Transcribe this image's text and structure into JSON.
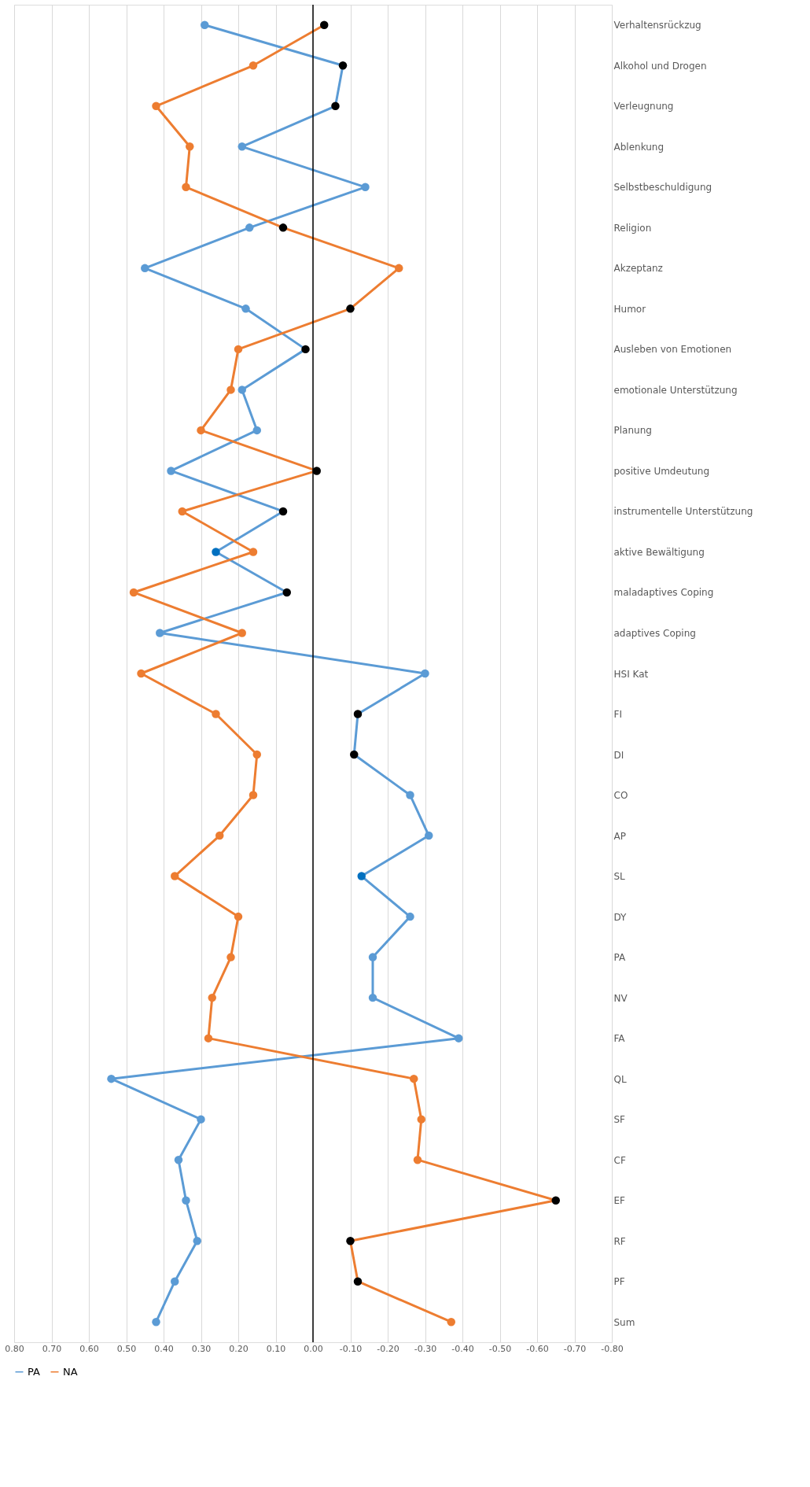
{
  "chart_data": {
    "type": "line",
    "orientation": "horizontal",
    "categories": [
      "Verhaltensrückzug",
      "Alkohol und Drogen",
      "Verleugnung",
      "Ablenkung",
      "Selbstbeschuldigung",
      "Religion",
      "Akzeptanz",
      "Humor",
      "Ausleben von Emotionen",
      "emotionale Unterstützung",
      "Planung",
      "positive Umdeutung",
      "instrumentelle Unterstützung",
      "aktive Bewältigung",
      "maladaptives Coping",
      "adaptives Coping",
      "HSI Kat",
      "FI",
      "DI",
      "CO",
      "AP",
      "SL",
      "DY",
      "PA",
      "NV",
      "FA",
      "QL",
      "SF",
      "CF",
      "EF",
      "RF",
      "PF",
      "Sum"
    ],
    "series": [
      {
        "name": "PA",
        "color": "#5b9bd5",
        "values": [
          0.29,
          -0.08,
          -0.06,
          0.19,
          -0.14,
          0.17,
          0.45,
          0.18,
          0.02,
          0.19,
          0.15,
          0.38,
          0.08,
          0.26,
          0.07,
          0.41,
          -0.3,
          -0.12,
          -0.11,
          -0.26,
          -0.31,
          -0.13,
          -0.26,
          -0.16,
          -0.16,
          -0.39,
          0.54,
          0.3,
          0.36,
          0.34,
          0.31,
          0.37,
          0.42
        ],
        "colors": [
          "#5b9bd5",
          "#000000",
          "#000000",
          "#5b9bd5",
          "#5b9bd5",
          "#5b9bd5",
          "#5b9bd5",
          "#5b9bd5",
          "#000000",
          "#5b9bd5",
          "#5b9bd5",
          "#5b9bd5",
          "#000000",
          "#0070c0",
          "#000000",
          "#5b9bd5",
          "#5b9bd5",
          "#000000",
          "#000000",
          "#5b9bd5",
          "#5b9bd5",
          "#0070c0",
          "#5b9bd5",
          "#5b9bd5",
          "#5b9bd5",
          "#5b9bd5",
          "#5b9bd5",
          "#5b9bd5",
          "#5b9bd5",
          "#5b9bd5",
          "#5b9bd5",
          "#5b9bd5",
          "#5b9bd5"
        ]
      },
      {
        "name": "NA",
        "color": "#ed7d31",
        "values": [
          -0.03,
          0.16,
          0.42,
          0.33,
          0.34,
          0.08,
          -0.23,
          -0.1,
          0.2,
          0.22,
          0.3,
          -0.01,
          0.35,
          0.16,
          0.48,
          0.19,
          0.46,
          0.26,
          0.15,
          0.16,
          0.25,
          0.37,
          0.2,
          0.22,
          0.27,
          0.28,
          -0.27,
          -0.29,
          -0.28,
          -0.65,
          -0.1,
          -0.12,
          -0.37
        ],
        "colors": [
          "#000000",
          "#ed7d31",
          "#ed7d31",
          "#ed7d31",
          "#ed7d31",
          "#000000",
          "#ed7d31",
          "#000000",
          "#ed7d31",
          "#ed7d31",
          "#ed7d31",
          "#000000",
          "#ed7d31",
          "#ed7d31",
          "#ed7d31",
          "#ed7d31",
          "#ed7d31",
          "#ed7d31",
          "#ed7d31",
          "#ed7d31",
          "#ed7d31",
          "#ed7d31",
          "#ed7d31",
          "#ed7d31",
          "#ed7d31",
          "#ed7d31",
          "#ed7d31",
          "#ed7d31",
          "#ed7d31",
          "#000000",
          "#000000",
          "#000000",
          "#ed7d31"
        ]
      }
    ],
    "xlim": [
      0.8,
      -0.8
    ],
    "xticks": [
      {
        "value": 0.8,
        "label": "0.80"
      },
      {
        "value": 0.7,
        "label": "0.70"
      },
      {
        "value": 0.6,
        "label": "0.60"
      },
      {
        "value": 0.5,
        "label": "0.50"
      },
      {
        "value": 0.4,
        "label": "0.40"
      },
      {
        "value": 0.3,
        "label": "0.30"
      },
      {
        "value": 0.2,
        "label": "0.20"
      },
      {
        "value": 0.1,
        "label": "0.10"
      },
      {
        "value": 0,
        "label": "0.00"
      },
      {
        "value": -0.1,
        "label": "-0.10"
      },
      {
        "value": -0.2,
        "label": "-0.20"
      },
      {
        "value": -0.3,
        "label": "-0.30"
      },
      {
        "value": -0.4,
        "label": "-0.40"
      },
      {
        "value": -0.5,
        "label": "-0.50"
      },
      {
        "value": -0.6,
        "label": "-0.60"
      },
      {
        "value": -0.7,
        "label": "-0.70"
      },
      {
        "value": -0.8,
        "label": "-0.80"
      }
    ],
    "ref_lines": [
      {
        "axis": "x",
        "value": 0,
        "color": "#000000"
      }
    ],
    "grid": "x",
    "legend": "bottom",
    "marker": "circle",
    "line_style": "solid"
  }
}
